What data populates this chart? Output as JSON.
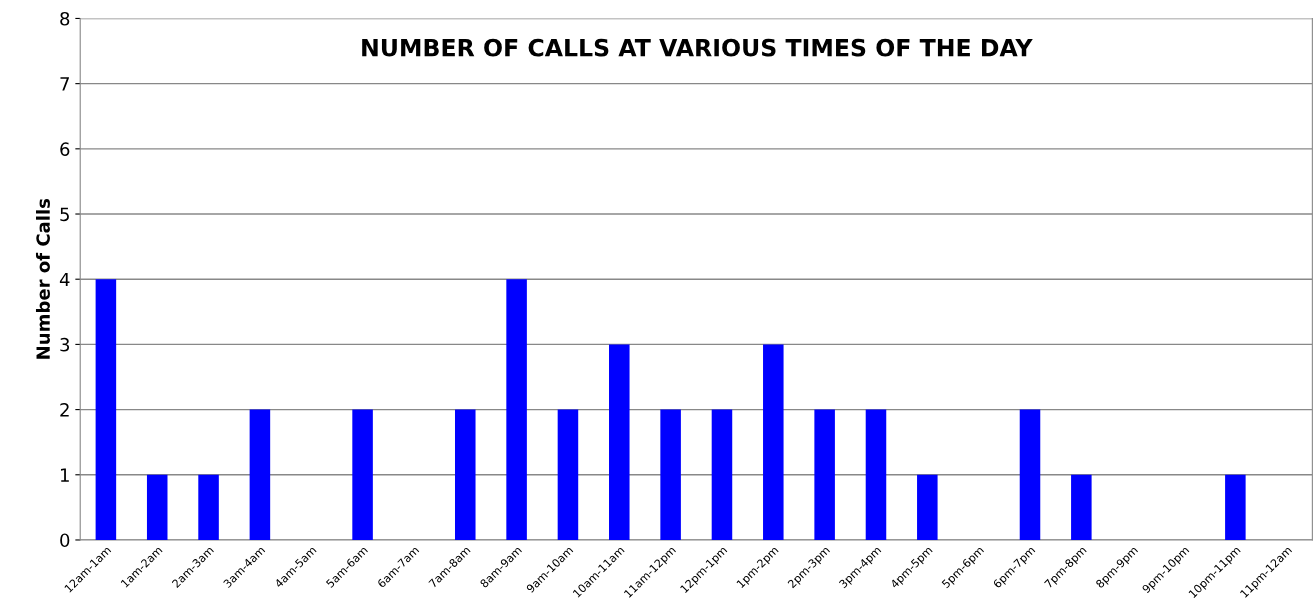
{
  "chart_data": {
    "type": "bar",
    "title": "NUMBER OF CALLS AT VARIOUS TIMES OF THE DAY",
    "ylabel": "Number of Calls",
    "categories": [
      "12am-1am",
      "1am-2am",
      "2am-3am",
      "3am-4am",
      "4am-5am",
      "5am-6am",
      "6am-7am",
      "7am-8am",
      "8am-9am",
      "9am-10am",
      "10am-11am",
      "11am-12pm",
      "12pm-1pm",
      "1pm-2pm",
      "2pm-3pm",
      "3pm-4pm",
      "4pm-5pm",
      "5pm-6pm",
      "6pm-7pm",
      "7pm-8pm",
      "8pm-9pm",
      "9pm-10pm",
      "10pm-11pm",
      "11pm-12am"
    ],
    "values": [
      4,
      1,
      1,
      2,
      0,
      2,
      0,
      2,
      4,
      2,
      3,
      2,
      2,
      3,
      2,
      2,
      1,
      0,
      2,
      1,
      0,
      0,
      1,
      0
    ],
    "color": "#0000ff",
    "ylim": [
      0,
      8
    ],
    "yticks": [
      0,
      1,
      2,
      3,
      4,
      5,
      6,
      7,
      8
    ],
    "grid": "y",
    "legend": false
  }
}
